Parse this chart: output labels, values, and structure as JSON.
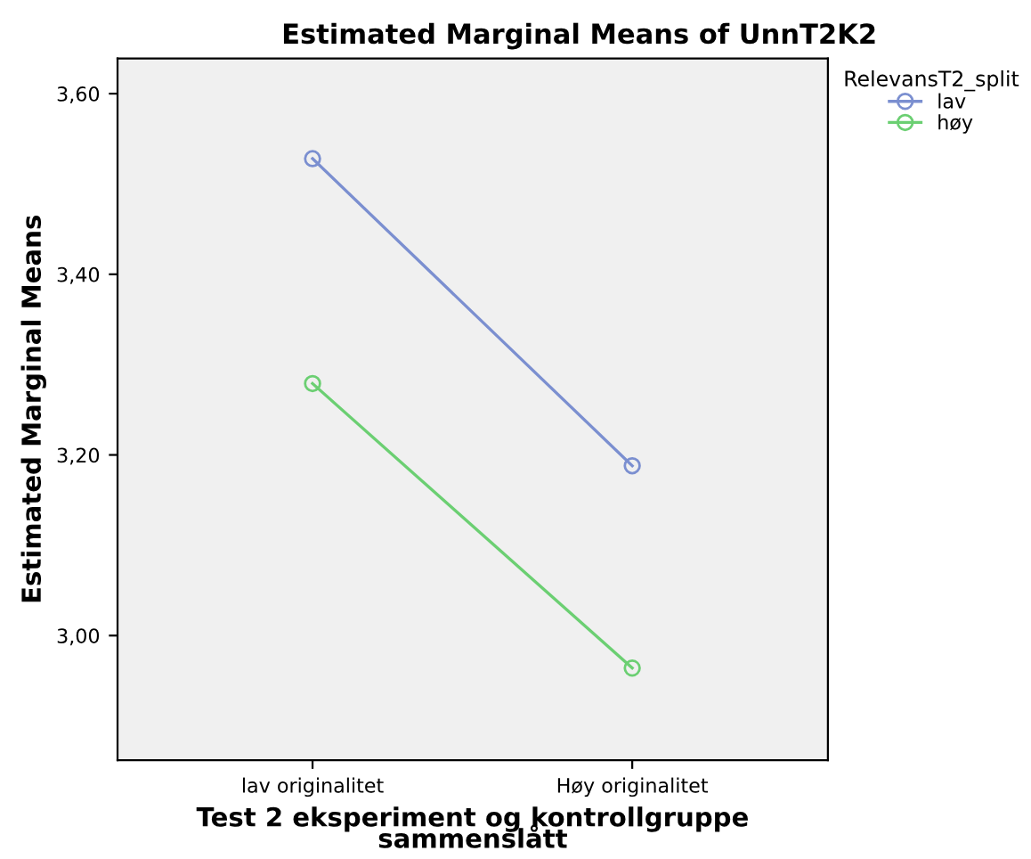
{
  "chart_data": {
    "type": "line",
    "title": "Estimated Marginal Means of UnnT2K2",
    "xlabel": "Test 2 eksperiment og kontrollgruppe\nsammenslått",
    "ylabel": "Estimated Marginal Means",
    "legend_title": "RelevansT2_split",
    "categories": [
      "lav originalitet",
      "Høy originalitet"
    ],
    "series": [
      {
        "name": "lav",
        "color": "#7b8fd0",
        "values": [
          3.528,
          3.188
        ]
      },
      {
        "name": "høy",
        "color": "#6bcf72",
        "values": [
          3.279,
          2.964
        ]
      }
    ],
    "ylim": [
      2.862,
      3.639
    ],
    "yticks": [
      {
        "value": 3.0,
        "label": "3,00"
      },
      {
        "value": 3.2,
        "label": "3,20"
      },
      {
        "value": 3.4,
        "label": "3,40"
      },
      {
        "value": 3.6,
        "label": "3,60"
      }
    ],
    "marker": "circle",
    "legend": "top right",
    "grid": false
  }
}
